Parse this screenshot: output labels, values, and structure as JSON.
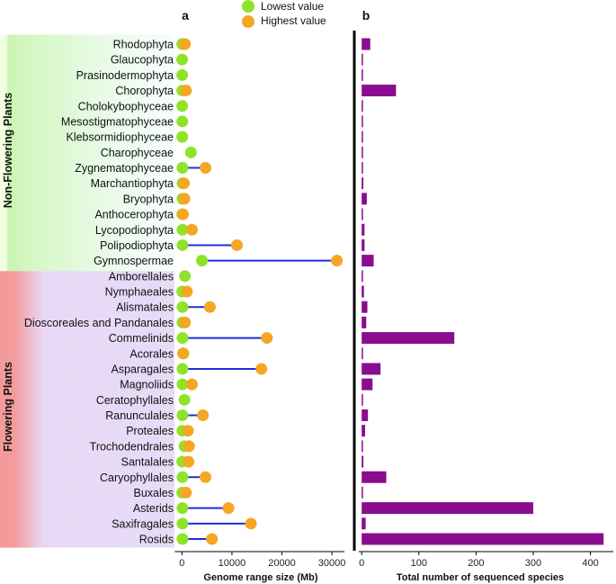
{
  "colors": {
    "lowest": "#8fe22a",
    "highest": "#f5a623",
    "segment": "#1f2fd6",
    "bar": "#8a0d8f",
    "non_flowering_band": "#ccf5b4",
    "flowering_band": "#f39b9b"
  },
  "legend": {
    "lowest_label": "Lowest value",
    "highest_label": "Highest value"
  },
  "groups": {
    "non_flowering": "Non-Flowering Plants",
    "flowering": "Flowering Plants"
  },
  "chart_data": [
    {
      "type": "dumbbell",
      "panel": "a",
      "xlabel": "Genome range size (Mb)",
      "xlim": [
        -1500,
        32500
      ],
      "xticks": [
        0,
        10000,
        20000,
        30000
      ],
      "categories": [
        "Rhodophyta",
        "Glaucophyta",
        "Prasinodermophyta",
        "Chorophyta",
        "Cholokybophyceae",
        "Mesostigmatophyceae",
        "Klebsormidiophyceae",
        "Charophyceae",
        "Zygnematophyceae",
        "Marchantiophyta",
        "Bryophyta",
        "Anthocerophyta",
        "Lycopodiophyta",
        "Polipodiophyta",
        "Gymnospermae",
        "Amborellales",
        "Nymphaeales",
        "Alismatales",
        "Dioscoreales and Pandanales",
        "Commelinids",
        "Acorales",
        "Asparagales",
        "Magnoliids",
        "Ceratophyllales",
        "Ranunculales",
        "Proteales",
        "Trochodendrales",
        "Santalales",
        "Caryophyllales",
        "Buxales",
        "Asterids",
        "Saxifragales",
        "Rosids"
      ],
      "series": [
        {
          "name": "Lowest value",
          "values": [
            50,
            30,
            40,
            60,
            50,
            60,
            60,
            1800,
            100,
            100,
            100,
            50,
            100,
            100,
            4000,
            600,
            50,
            100,
            100,
            100,
            300,
            100,
            100,
            500,
            100,
            80,
            500,
            50,
            100,
            50,
            100,
            100,
            100
          ]
        },
        {
          "name": "Highest value",
          "values": [
            600,
            null,
            null,
            800,
            null,
            null,
            null,
            null,
            4700,
            400,
            500,
            200,
            2000,
            11000,
            31000,
            null,
            1000,
            5600,
            600,
            17000,
            200,
            15900,
            2000,
            null,
            4200,
            1200,
            1400,
            1300,
            4700,
            800,
            9300,
            13800,
            6000
          ]
        }
      ]
    },
    {
      "type": "bar",
      "orientation": "horizontal",
      "panel": "b",
      "xlabel": "Total number of sequenced species",
      "xlim": [
        -5,
        440
      ],
      "xticks": [
        0,
        100,
        200,
        300,
        400
      ],
      "categories": [
        "Rhodophyta",
        "Glaucophyta",
        "Prasinodermophyta",
        "Chorophyta",
        "Cholokybophyceae",
        "Mesostigmatophyceae",
        "Klebsormidiophyceae",
        "Charophyceae",
        "Zygnematophyceae",
        "Marchantiophyta",
        "Bryophyta",
        "Anthocerophyta",
        "Lycopodiophyta",
        "Polipodiophyta",
        "Gymnospermae",
        "Amborellales",
        "Nymphaeales",
        "Alismatales",
        "Dioscoreales and Pandanales",
        "Commelinids",
        "Acorales",
        "Asparagales",
        "Magnoliids",
        "Ceratophyllales",
        "Ranunculales",
        "Proteales",
        "Trochodendrales",
        "Santalales",
        "Caryophyllales",
        "Buxales",
        "Asterids",
        "Saxifragales",
        "Rosids"
      ],
      "values": [
        15,
        1,
        1,
        60,
        1,
        1,
        1,
        1,
        2,
        3,
        9,
        1,
        5,
        5,
        21,
        1,
        4,
        10,
        8,
        162,
        1,
        33,
        19,
        1,
        11,
        6,
        1,
        3,
        43,
        1,
        300,
        7,
        423
      ]
    }
  ]
}
